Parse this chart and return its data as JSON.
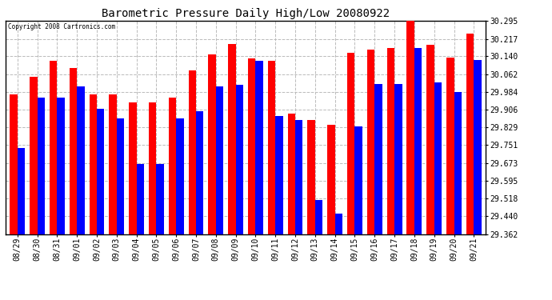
{
  "title": "Barometric Pressure Daily High/Low 20080922",
  "copyright": "Copyright 2008 Cartronics.com",
  "dates": [
    "08/29",
    "08/30",
    "08/31",
    "09/01",
    "09/02",
    "09/03",
    "09/04",
    "09/05",
    "09/06",
    "09/07",
    "09/08",
    "09/09",
    "09/10",
    "09/11",
    "09/12",
    "09/13",
    "09/14",
    "09/15",
    "09/16",
    "09/17",
    "09/18",
    "09/19",
    "09/20",
    "09/21"
  ],
  "highs": [
    29.975,
    30.05,
    30.12,
    30.09,
    29.975,
    29.975,
    29.94,
    29.94,
    29.96,
    30.08,
    30.15,
    30.195,
    30.13,
    30.12,
    29.89,
    29.86,
    29.84,
    30.155,
    30.17,
    30.175,
    30.31,
    30.19,
    30.135,
    30.24
  ],
  "lows": [
    29.74,
    29.96,
    29.96,
    30.01,
    29.91,
    29.87,
    29.67,
    29.67,
    29.87,
    29.9,
    30.01,
    30.015,
    30.12,
    29.88,
    29.86,
    29.51,
    29.45,
    29.835,
    30.02,
    30.02,
    30.175,
    30.025,
    29.985,
    30.125
  ],
  "ymin": 29.362,
  "ymax": 30.295,
  "yticks": [
    29.362,
    29.44,
    29.518,
    29.595,
    29.673,
    29.751,
    29.829,
    29.906,
    29.984,
    30.062,
    30.14,
    30.217,
    30.295
  ],
  "high_color": "#ff0000",
  "low_color": "#0000ff",
  "bg_color": "#ffffff",
  "plot_bg_color": "#ffffff",
  "grid_color": "#bbbbbb",
  "bar_width": 0.38
}
